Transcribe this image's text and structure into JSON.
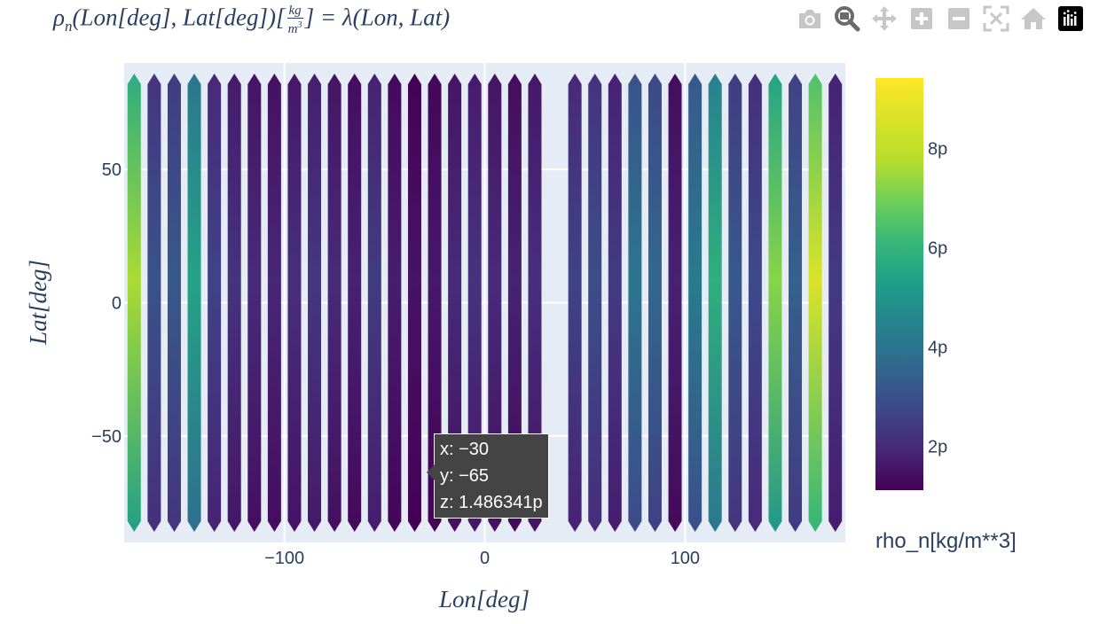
{
  "title": {
    "lhs": "ρ",
    "sub": "n",
    "args": "(Lon[deg], Lat[deg])[",
    "frac_num": "kg",
    "frac_den": "m",
    "frac_den_exp": "3",
    "rhs": "] = λ(Lon, Lat)"
  },
  "modebar": [
    {
      "name": "camera-icon",
      "label": "Download plot as a png"
    },
    {
      "name": "zoom-icon",
      "label": "Zoom"
    },
    {
      "name": "pan-icon",
      "label": "Pan"
    },
    {
      "name": "zoom-in-icon",
      "label": "Zoom in"
    },
    {
      "name": "zoom-out-icon",
      "label": "Zoom out"
    },
    {
      "name": "autoscale-icon",
      "label": "Autoscale"
    },
    {
      "name": "reset-axes-icon",
      "label": "Reset axes"
    },
    {
      "name": "plotly-logo-icon",
      "label": "Produced with Plotly"
    }
  ],
  "chart_data": {
    "type": "heatmap",
    "xlabel": "Lon[deg]",
    "ylabel": "Lat[deg]",
    "xlim": [
      -180,
      180
    ],
    "ylim": [
      -90,
      90
    ],
    "x_ticks": [
      -100,
      0,
      100
    ],
    "x_tick_labels": [
      "−100",
      "0",
      "100"
    ],
    "y_ticks": [
      -50,
      0,
      50
    ],
    "y_tick_labels": [
      "−50",
      "0",
      "50"
    ],
    "grid": true,
    "colorscale": "Viridis",
    "colorbar": {
      "title": "rho_n[kg/m**3]",
      "range": [
        1.1,
        9.4
      ],
      "ticks": [
        2,
        4,
        6,
        8
      ],
      "tick_labels": [
        "2p",
        "4p",
        "6p",
        "8p"
      ]
    },
    "stripes": [
      {
        "x": -175,
        "z": 7.6
      },
      {
        "x": -165,
        "z": 3.0
      },
      {
        "x": -155,
        "z": 3.2
      },
      {
        "x": -145,
        "z": 5.4
      },
      {
        "x": -135,
        "z": 2.6
      },
      {
        "x": -125,
        "z": 2.2
      },
      {
        "x": -115,
        "z": 2.0
      },
      {
        "x": -105,
        "z": 1.9
      },
      {
        "x": -95,
        "z": 2.1
      },
      {
        "x": -85,
        "z": 2.3
      },
      {
        "x": -75,
        "z": 2.0
      },
      {
        "x": -65,
        "z": 1.8
      },
      {
        "x": -55,
        "z": 2.4
      },
      {
        "x": -45,
        "z": 1.7
      },
      {
        "x": -35,
        "z": 1.5
      },
      {
        "x": -25,
        "z": 1.6
      },
      {
        "x": -15,
        "z": 2.0
      },
      {
        "x": -5,
        "z": 2.2
      },
      {
        "x": 5,
        "z": 2.0
      },
      {
        "x": 15,
        "z": 1.8
      },
      {
        "x": 25,
        "z": 2.1
      },
      {
        "x": 45,
        "z": 2.6
      },
      {
        "x": 55,
        "z": 2.9
      },
      {
        "x": 65,
        "z": 2.4
      },
      {
        "x": 75,
        "z": 4.0
      },
      {
        "x": 85,
        "z": 3.6
      },
      {
        "x": 95,
        "z": 1.8
      },
      {
        "x": 105,
        "z": 4.2
      },
      {
        "x": 115,
        "z": 5.8
      },
      {
        "x": 125,
        "z": 3.2
      },
      {
        "x": 135,
        "z": 2.8
      },
      {
        "x": 145,
        "z": 7.2
      },
      {
        "x": 155,
        "z": 3.4
      },
      {
        "x": 165,
        "z": 8.6
      },
      {
        "x": 175,
        "z": 2.4
      }
    ],
    "hover": {
      "x": "−30",
      "y": "−65",
      "z": "1.486341p"
    }
  },
  "tooltip": {
    "x_line": "x: −30",
    "y_line": "y: −65",
    "z_line": "z: 1.486341p"
  }
}
